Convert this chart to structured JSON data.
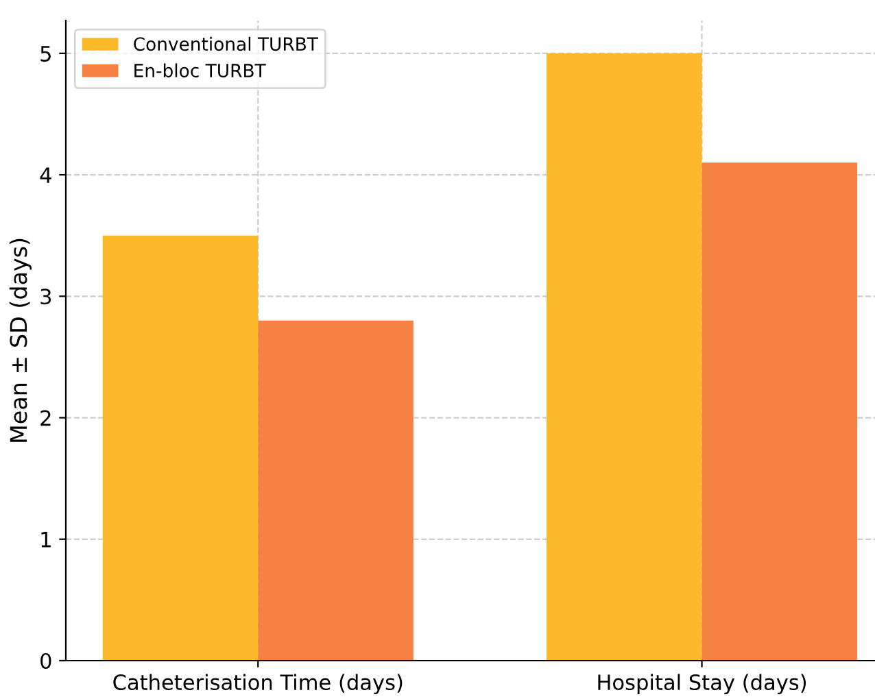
{
  "chart_data": {
    "type": "bar",
    "ylabel": "Mean ± SD (days)",
    "categories": [
      "Catheterisation Time (days)",
      "Hospital Stay (days)"
    ],
    "series": [
      {
        "name": "Conventional TURBT",
        "color": "#fbb829",
        "values": [
          3.5,
          5.0
        ]
      },
      {
        "name": "En-bloc TURBT",
        "color": "#f58142",
        "values": [
          2.8,
          4.1
        ]
      }
    ],
    "ylim": [
      0,
      5.27
    ],
    "yticks": [
      0,
      1,
      2,
      3,
      4,
      5
    ],
    "grid": true,
    "legend": "top left"
  }
}
